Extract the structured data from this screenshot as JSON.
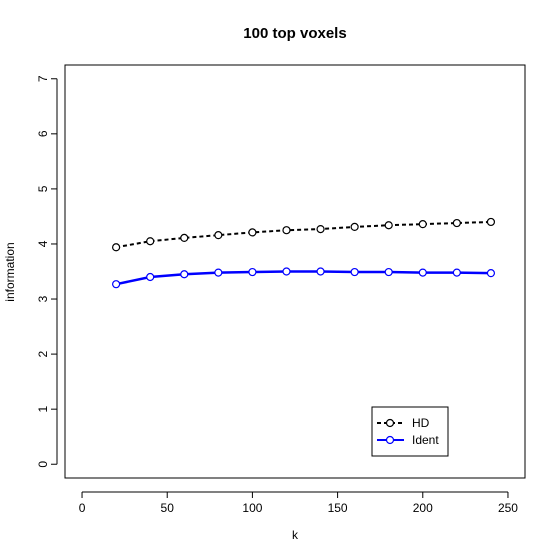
{
  "chart_data": {
    "type": "line",
    "title": "100 top voxels",
    "xlabel": "k",
    "ylabel": "information",
    "xlim": [
      -10,
      260
    ],
    "ylim": [
      -0.25,
      7.25
    ],
    "x_ticks": [
      0,
      50,
      100,
      150,
      200,
      250
    ],
    "y_ticks": [
      0,
      1,
      2,
      3,
      4,
      5,
      6,
      7
    ],
    "grid": false,
    "legend_position": "bottom-right",
    "x": [
      20,
      40,
      60,
      80,
      100,
      120,
      140,
      160,
      180,
      200,
      220,
      240
    ],
    "series": [
      {
        "name": "HD",
        "color": "#000000",
        "line_style": "dashed",
        "marker": "open-circle",
        "values": [
          3.94,
          4.05,
          4.11,
          4.16,
          4.21,
          4.25,
          4.27,
          4.31,
          4.34,
          4.36,
          4.38,
          4.4
        ]
      },
      {
        "name": "Ident",
        "color": "#0000ff",
        "line_style": "solid",
        "marker": "open-circle",
        "values": [
          3.27,
          3.4,
          3.45,
          3.48,
          3.49,
          3.5,
          3.5,
          3.49,
          3.49,
          3.48,
          3.48,
          3.47
        ]
      }
    ]
  }
}
